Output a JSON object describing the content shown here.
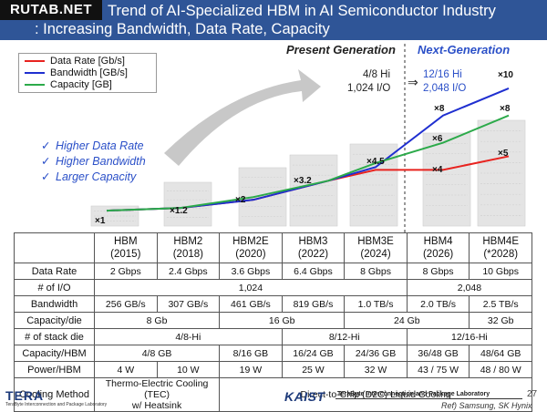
{
  "watermark": "RUTAB.NET",
  "title": {
    "line1": "Trend of AI-Specialized HBM in AI Semiconductor Industry",
    "line2": ": Increasing Bandwidth, Data Rate, Capacity"
  },
  "generations": {
    "present": "Present Generation",
    "next": "Next-Generation"
  },
  "legend": [
    {
      "name": "Data Rate [Gb/s]",
      "color": "#e8231f"
    },
    {
      "name": "Bandwidth [GB/s]",
      "color": "#1f2fd0"
    },
    {
      "name": "Capacity [GB]",
      "color": "#2caa4a"
    }
  ],
  "bullets": [
    "Higher Data Rate",
    "Higher Bandwidth",
    "Larger Capacity"
  ],
  "io_comparison": {
    "present_hi": "4/8 Hi",
    "present_io": "1,024 I/O",
    "arrow": "⇒",
    "next_hi": "12/16 Hi",
    "next_io": "2,048 I/O"
  },
  "chart_data": {
    "type": "line",
    "categories": [
      "HBM",
      "HBM2",
      "HBM2E",
      "HBM3",
      "HBM3E",
      "HBM4",
      "HBM4E"
    ],
    "series": [
      {
        "name": "Data Rate [Gb/s]",
        "color": "#e8231f",
        "values": [
          1,
          1.2,
          1.8,
          3.2,
          4,
          4,
          5
        ]
      },
      {
        "name": "Bandwidth [GB/s]",
        "color": "#1f2fd0",
        "values": [
          1,
          1.2,
          1.8,
          3.2,
          4.2,
          8,
          10
        ]
      },
      {
        "name": "Capacity [GB]",
        "color": "#2caa4a",
        "values": [
          1,
          1.2,
          2,
          3.2,
          4.5,
          6,
          8
        ]
      }
    ],
    "annotations": [
      "×1",
      "×1.2",
      "×2",
      "×3.2",
      "×4.5",
      "×4",
      "×6",
      "×8",
      "×5",
      "×8",
      "×10"
    ],
    "ylim": [
      0,
      11
    ],
    "grid": false,
    "legend_position": "top-left"
  },
  "table": {
    "header": [
      "",
      "HBM\n(2015)",
      "HBM2\n(2018)",
      "HBM2E\n(2020)",
      "HBM3\n(2022)",
      "HBM3E\n(2024)",
      "HBM4\n(2026)",
      "HBM4E\n(*2028)"
    ],
    "rows": [
      {
        "label": "Data Rate",
        "cells": [
          [
            "2 Gbps",
            1
          ],
          [
            "2.4 Gbps",
            1
          ],
          [
            "3.6 Gbps",
            1
          ],
          [
            "6.4 Gbps",
            1
          ],
          [
            "8 Gbps",
            1
          ],
          [
            "8 Gbps",
            1
          ],
          [
            "10 Gbps",
            1
          ]
        ]
      },
      {
        "label": "# of I/O",
        "cells": [
          [
            "1,024",
            5
          ],
          [
            "2,048",
            2
          ]
        ]
      },
      {
        "label": "Bandwidth",
        "cells": [
          [
            "256 GB/s",
            1
          ],
          [
            "307 GB/s",
            1
          ],
          [
            "461 GB/s",
            1
          ],
          [
            "819 GB/s",
            1
          ],
          [
            "1.0 TB/s",
            1
          ],
          [
            "2.0 TB/s",
            1
          ],
          [
            "2.5 TB/s",
            1
          ]
        ]
      },
      {
        "label": "Capacity/die",
        "cells": [
          [
            "8 Gb",
            2
          ],
          [
            "16 Gb",
            2
          ],
          [
            "24 Gb",
            2
          ],
          [
            "32 Gb",
            1
          ]
        ]
      },
      {
        "label": "# of stack die",
        "cells": [
          [
            "4/8-Hi",
            3
          ],
          [
            "8/12-Hi",
            2
          ],
          [
            "12/16-Hi",
            2
          ]
        ]
      },
      {
        "label": "Capacity/HBM",
        "cells": [
          [
            "4/8 GB",
            2
          ],
          [
            "8/16 GB",
            1
          ],
          [
            "16/24 GB",
            1
          ],
          [
            "24/36 GB",
            1
          ],
          [
            "36/48 GB",
            1
          ],
          [
            "48/64 GB",
            1
          ]
        ]
      },
      {
        "label": "Power/HBM",
        "cells": [
          [
            "4 W",
            1
          ],
          [
            "10 W",
            1
          ],
          [
            "19 W",
            1
          ],
          [
            "25 W",
            1
          ],
          [
            "32 W",
            1
          ],
          [
            "43 / 75 W",
            1
          ],
          [
            "48 / 80 W",
            1
          ]
        ]
      },
      {
        "label": "Cooling Method",
        "cells": [
          [
            "Thermo-Electric Cooling (TEC)\nw/ Heatsink",
            2
          ],
          [
            "Direct-to-Chip (D2C) Liquid Cooling",
            5
          ]
        ]
      }
    ]
  },
  "footer": {
    "tera_logo": "TERA",
    "tera_sub": "TeraByte Interconnection and Package Laboratory",
    "kaist_logo": "KAIST",
    "lab": "TeraByte Interconnection and Package Laboratory",
    "page": "27",
    "ref": "Ref) Samsung, SK Hynix"
  }
}
